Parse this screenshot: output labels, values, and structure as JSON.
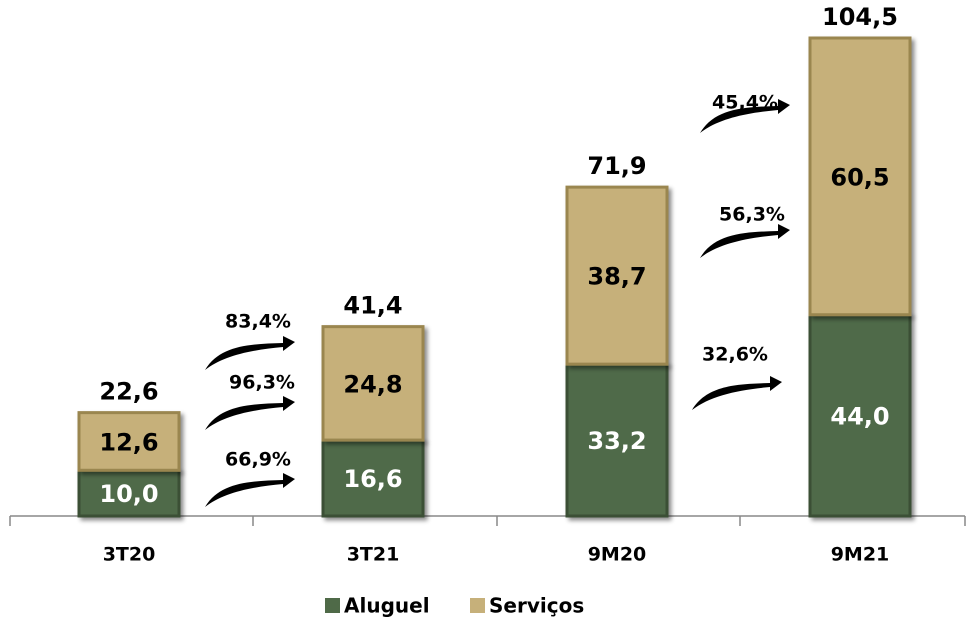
{
  "chart_data": {
    "type": "stacked_bar",
    "categories": [
      "3T20",
      "3T21",
      "9M20",
      "9M21"
    ],
    "series": [
      {
        "name": "Aluguel",
        "color": "#4f6a48",
        "values": [
          10.0,
          16.6,
          33.2,
          44.0
        ],
        "value_labels": [
          "10,0",
          "16,6",
          "33,2",
          "44,0"
        ]
      },
      {
        "name": "Serviços",
        "color": "#c6b07a",
        "values": [
          12.6,
          24.8,
          38.7,
          60.5
        ],
        "value_labels": [
          "12,6",
          "24,8",
          "38,7",
          "60,5"
        ]
      }
    ],
    "totals": {
      "values": [
        22.6,
        41.4,
        71.9,
        104.5
      ],
      "value_labels": [
        "22,6",
        "41,4",
        "71,9",
        "104,5"
      ]
    },
    "annotations": [
      "83,4%",
      "96,3%",
      "66,9%",
      "45,4%",
      "56,3%",
      "32,6%"
    ],
    "legend": "bottom"
  }
}
